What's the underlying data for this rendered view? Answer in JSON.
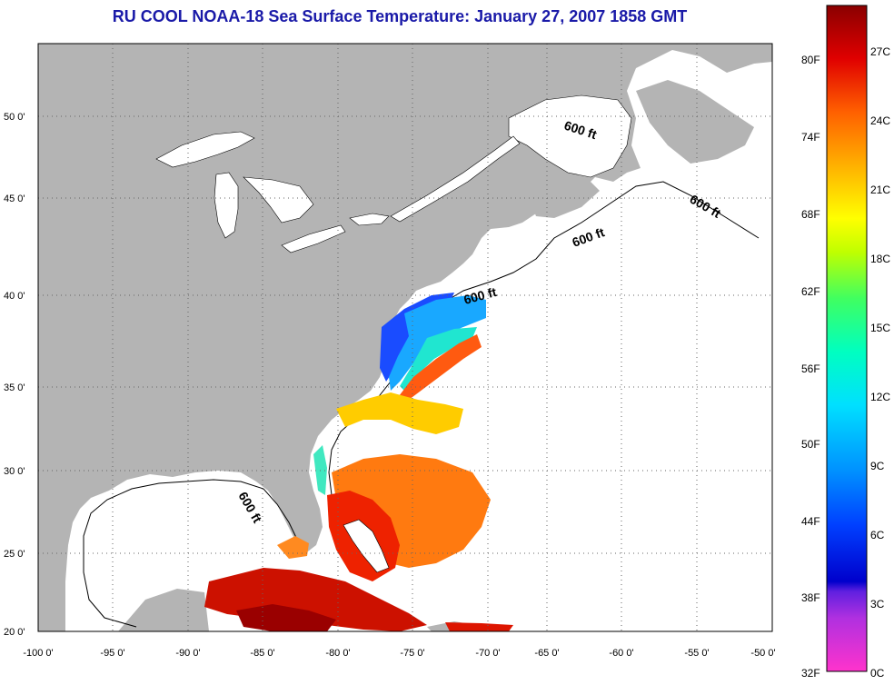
{
  "title": "RU COOL  NOAA-18  Sea Surface Temperature:  January 27, 2007 1858 GMT",
  "lon_labels": [
    "-100 0'",
    "-95 0'",
    "-90 0'",
    "-85 0'",
    "-80 0'",
    "-75 0'",
    "-70 0'",
    "-65 0'",
    "-60 0'",
    "-55 0'",
    "-50 0'"
  ],
  "lat_labels": [
    "50 0'",
    "45 0'",
    "40 0'",
    "35 0'",
    "30 0'",
    "25 0'",
    "20 0'"
  ],
  "contour_labels": [
    "600 ft",
    "600 ft",
    "600 ft",
    "600 ft",
    "600 ft"
  ],
  "colorbar": {
    "fahrenheit": [
      "80F",
      "74F",
      "68F",
      "62F",
      "56F",
      "50F",
      "44F",
      "38F",
      "32F"
    ],
    "celsius": [
      "27C",
      "24C",
      "21C",
      "18C",
      "15C",
      "12C",
      "9C",
      "6C",
      "3C",
      "0C"
    ],
    "range_c": [
      0,
      29
    ]
  },
  "colors": {
    "land": "#b4b4b4",
    "ocean": "#ffffff",
    "title": "#1a1aa8"
  }
}
